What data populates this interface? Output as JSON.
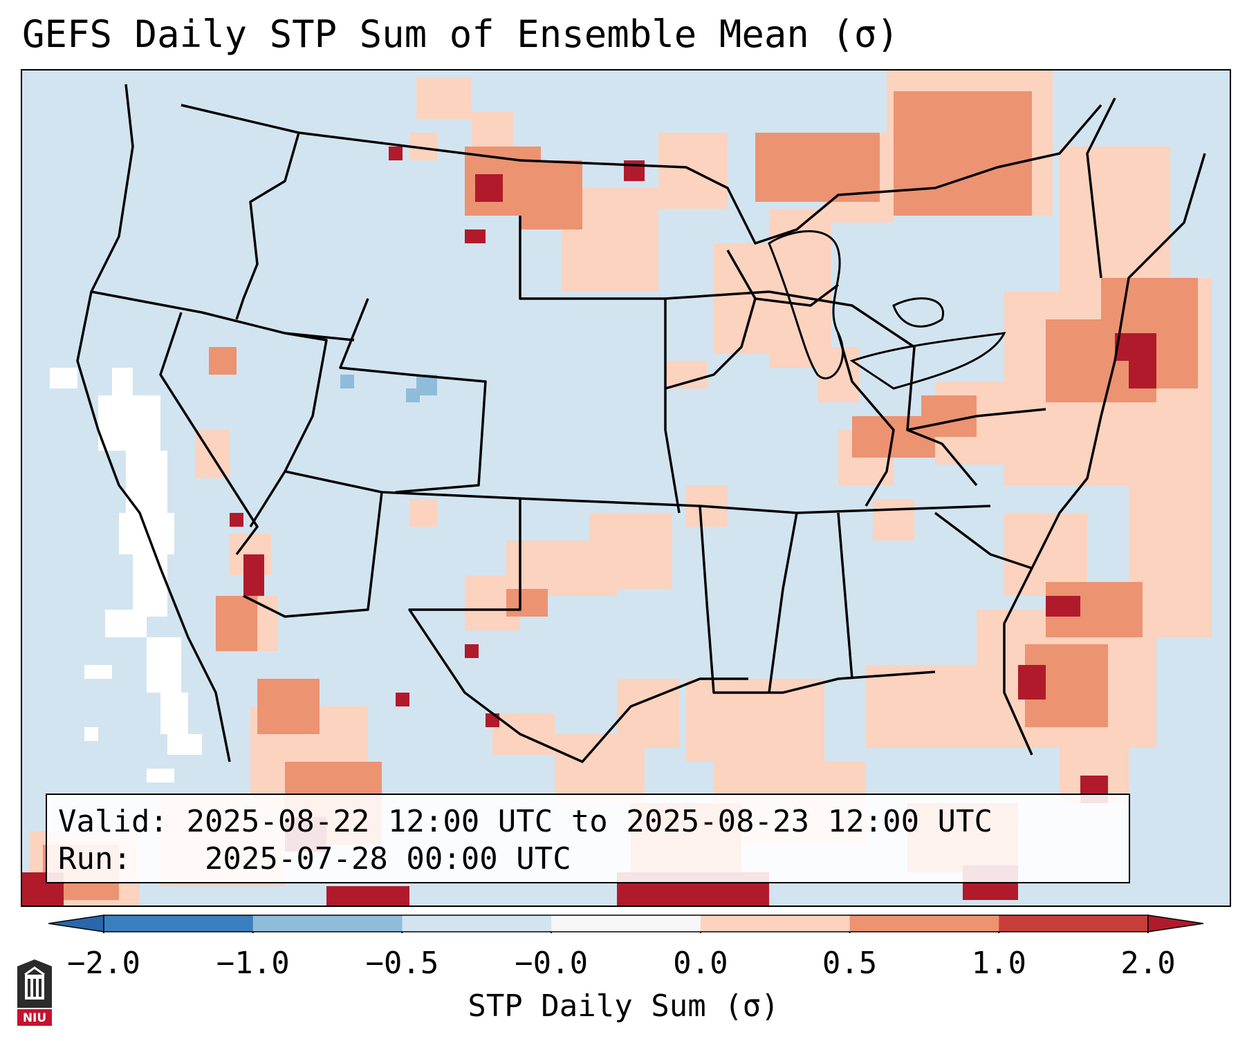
{
  "header": {
    "title": "GEFS Daily STP Sum of Ensemble Mean (σ)"
  },
  "info": {
    "valid_label": "Valid:",
    "valid_value": "2025-08-22 12:00 UTC to 2025-08-23 12:00 UTC",
    "run_label": "Run:",
    "run_value": "2025-07-28 00:00 UTC"
  },
  "colorbar": {
    "title": "STP Daily Sum (σ)",
    "ticks": [
      "−2.0",
      "−1.0",
      "−0.5",
      "−0.0",
      "0.0",
      "0.5",
      "1.0",
      "2.0"
    ],
    "colors": [
      "#3a7fbf",
      "#8fbcd9",
      "#d2e4f0",
      "#f7f7f7",
      "#fbd3bf",
      "#ec9372",
      "#c83f3a"
    ],
    "extend_low_color": "#2a66ab",
    "extend_high_color": "#b11a2b"
  },
  "map": {
    "region": "Contiguous United States",
    "background_color": "#d2e4f0"
  },
  "logo": {
    "text": "NIU"
  }
}
